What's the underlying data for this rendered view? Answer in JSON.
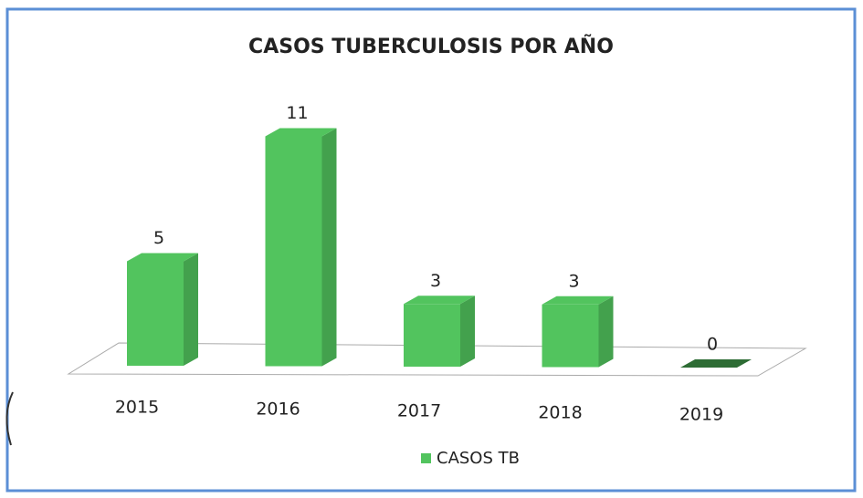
{
  "chart_data": {
    "type": "bar",
    "title": "CASOS TUBERCULOSIS POR AÑO",
    "categories": [
      "2015",
      "2016",
      "2017",
      "2018",
      "2019"
    ],
    "series": [
      {
        "name": "CASOS TB",
        "color": "#52c45e",
        "values": [
          5,
          11,
          3,
          3,
          0
        ]
      }
    ],
    "legend": "bottom"
  }
}
